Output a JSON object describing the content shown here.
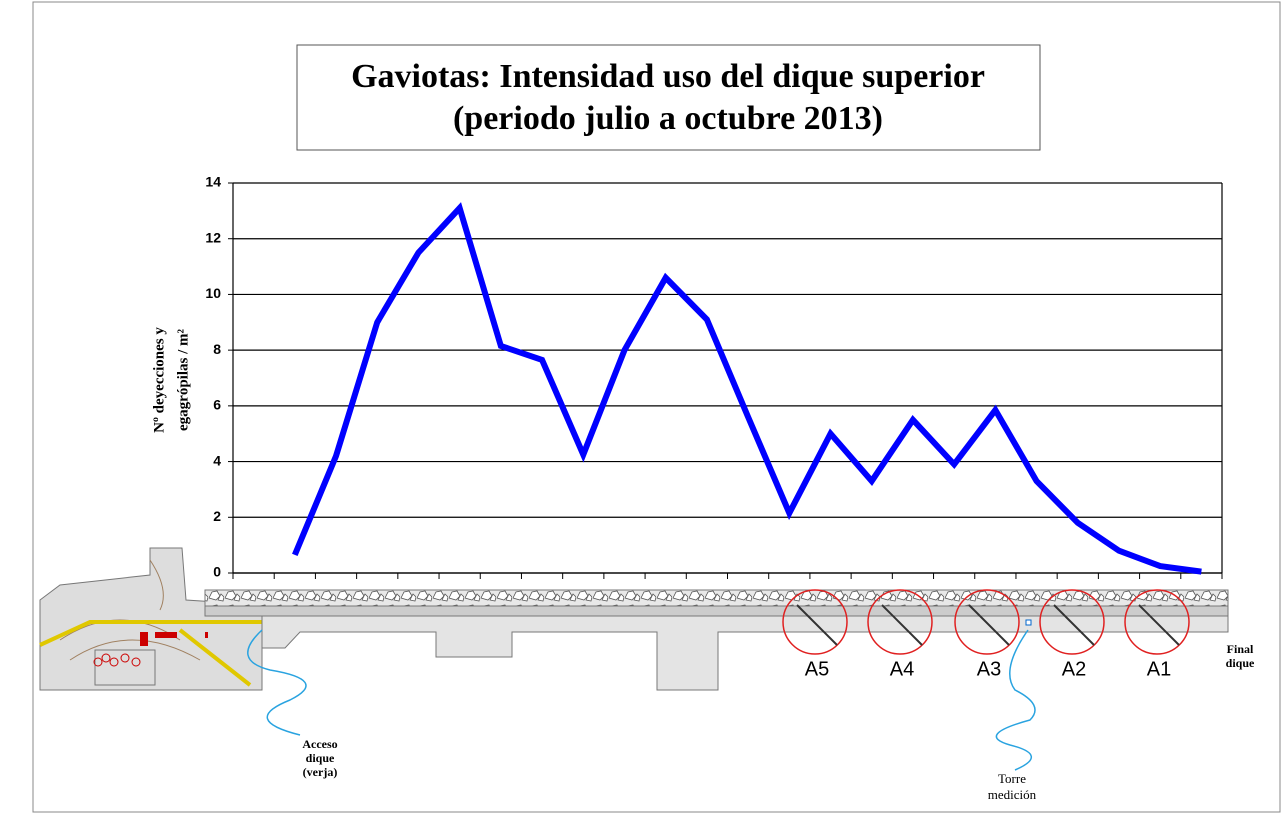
{
  "chart_data": {
    "type": "line",
    "title": [
      "Gaviotas: Intensidad uso del dique superior",
      "(periodo julio a octubre 2013)"
    ],
    "ylabel": [
      "Nº deyecciones y",
      "egagrópilas / m²"
    ],
    "categories": [
      null,
      null,
      null,
      null,
      null,
      null,
      null,
      null,
      null,
      null,
      null,
      null,
      null,
      null,
      null,
      null,
      null,
      null,
      null,
      null,
      null,
      null,
      null,
      null
    ],
    "series": [
      {
        "color": "#0000ff",
        "values": [
          null,
          0.65,
          4.2,
          9.0,
          11.5,
          13.1,
          8.15,
          7.65,
          4.25,
          8.0,
          10.6,
          9.1,
          5.6,
          2.15,
          5.0,
          3.3,
          5.5,
          3.9,
          5.85,
          3.3,
          1.8,
          0.8,
          0.25,
          0.05
        ]
      }
    ],
    "ylim": [
      0,
      14
    ],
    "yticks": [
      0,
      2,
      4,
      6,
      8,
      10,
      12,
      14
    ],
    "grid": true,
    "annotations": {
      "sections": [
        "A5",
        "A4",
        "A3",
        "A2",
        "A1"
      ],
      "end": [
        "Final",
        "dique"
      ],
      "access": [
        "Acceso",
        "dique",
        "(verja)"
      ],
      "tower": [
        "Torre",
        "medición"
      ]
    }
  }
}
